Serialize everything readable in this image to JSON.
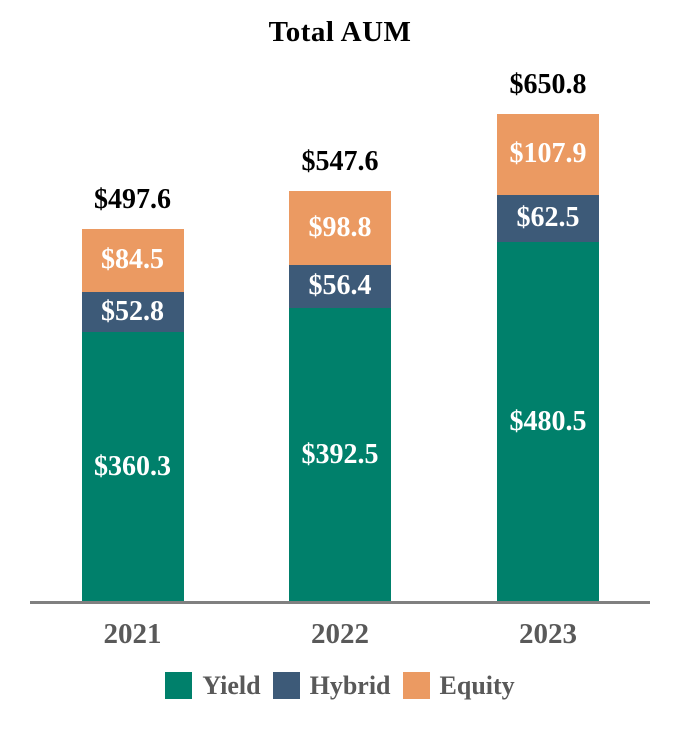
{
  "chart_data": {
    "type": "bar",
    "stacked": true,
    "title": "Total AUM",
    "categories": [
      "2021",
      "2022",
      "2023"
    ],
    "series": [
      {
        "name": "Yield",
        "color": "#00806B",
        "values": [
          360.3,
          392.5,
          480.5
        ],
        "labels": [
          "$360.3",
          "$392.5",
          "$480.5"
        ]
      },
      {
        "name": "Hybrid",
        "color": "#3D5A78",
        "values": [
          52.8,
          56.4,
          62.5
        ],
        "labels": [
          "$52.8",
          "$56.4",
          "$62.5"
        ]
      },
      {
        "name": "Equity",
        "color": "#EB9A62",
        "values": [
          84.5,
          98.8,
          107.9
        ],
        "labels": [
          "$84.5",
          "$98.8",
          "$107.9"
        ]
      }
    ],
    "totals": [
      497.6,
      547.6,
      650.8
    ],
    "total_labels": [
      "$497.6",
      "$547.6",
      "$650.8"
    ],
    "legend_position": "bottom",
    "grid": false,
    "ylim": [
      0,
      700
    ],
    "colors": {
      "total_label": "#000000",
      "segment_label": "#FFFFFF",
      "axis_line": "#808080",
      "category_label": "#595959",
      "legend_text": "#595959"
    }
  }
}
